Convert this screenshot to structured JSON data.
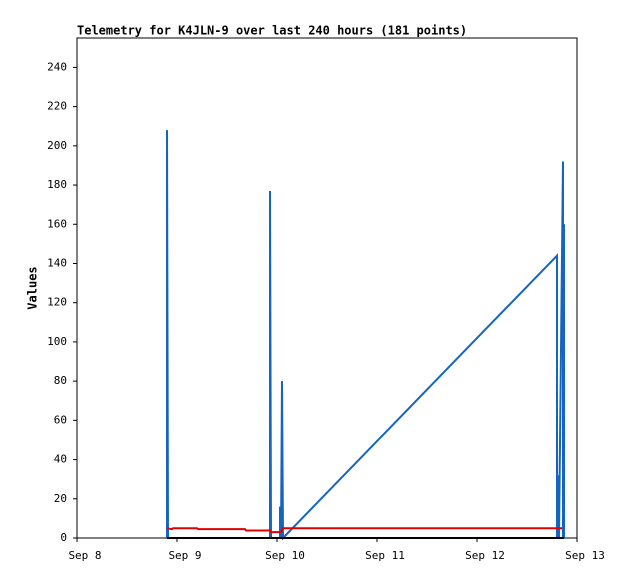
{
  "chart_data": {
    "type": "line",
    "title": "Telemetry for K4JLN-9 over last 240 hours (181 points)",
    "y_label": "Values",
    "xlim": [
      0,
      5
    ],
    "xticks": [
      {
        "value": 0,
        "label": "Sep 8"
      },
      {
        "value": 1,
        "label": "Sep 9"
      },
      {
        "value": 2,
        "label": "Sep 10"
      },
      {
        "value": 3,
        "label": "Sep 11"
      },
      {
        "value": 4,
        "label": "Sep 12"
      },
      {
        "value": 5,
        "label": "Sep 13"
      }
    ],
    "ylim": [
      0,
      255
    ],
    "yticks": [
      0,
      20,
      40,
      60,
      80,
      100,
      120,
      140,
      160,
      180,
      200,
      220,
      240
    ],
    "grid": false,
    "series": [
      {
        "color": "#1565c0",
        "x": [
          0.9,
          0.9,
          0.91,
          1.93,
          1.93,
          1.94,
          2.03,
          2.03,
          2.04,
          2.05,
          2.06,
          4.8,
          4.8,
          4.81,
          4.82,
          4.86,
          4.86,
          4.87,
          4.87
        ],
        "values": [
          0,
          208,
          0,
          0,
          177,
          0,
          0,
          16,
          0,
          80,
          0,
          144,
          0,
          32,
          0,
          192,
          0,
          160,
          0
        ]
      },
      {
        "color": "#000000",
        "x": [
          0.9,
          4.87
        ],
        "values": [
          0,
          0
        ]
      },
      {
        "color": "#e00000",
        "x": [
          0.9,
          0.95,
          0.96,
          1.2,
          1.21,
          1.68,
          1.69,
          1.93,
          1.94,
          2.04,
          2.06,
          4.85
        ],
        "values": [
          5,
          4.5,
          5,
          5,
          4.5,
          4.5,
          3.8,
          3.8,
          3,
          3,
          5,
          5
        ]
      }
    ]
  }
}
